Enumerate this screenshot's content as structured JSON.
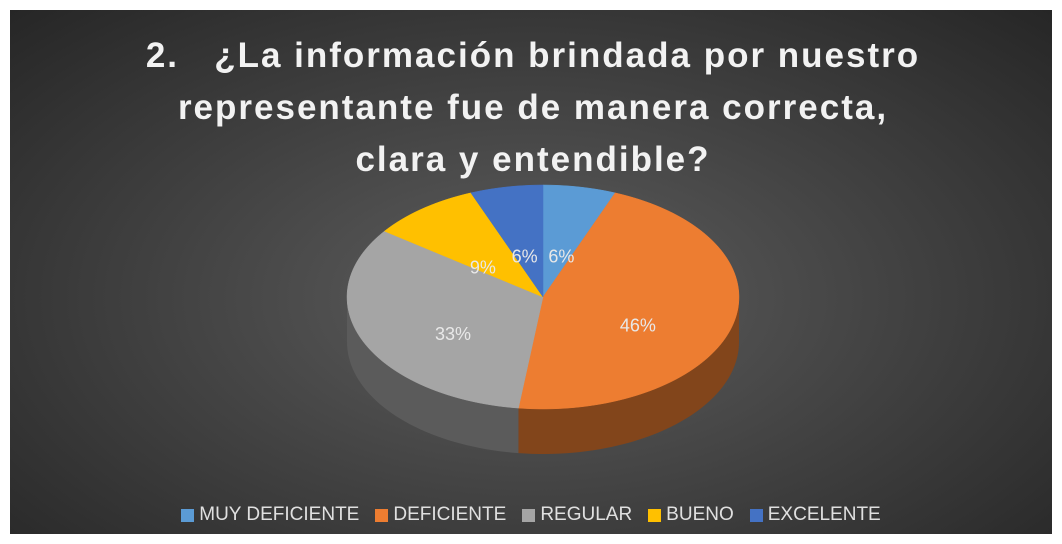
{
  "chart_data": {
    "type": "pie",
    "title": "2.   ¿La información brindada por nuestro representante fue de manera correcta, clara y entendible?",
    "categories": [
      "MUY DEFICIENTE",
      "DEFICIENTE",
      "REGULAR",
      "BUENO",
      "EXCELENTE"
    ],
    "values": [
      6,
      46,
      33,
      9,
      6
    ],
    "value_labels": [
      "6%",
      "46%",
      "33%",
      "9%",
      "6%"
    ],
    "colors": [
      "#5b9bd5",
      "#ed7d31",
      "#a5a5a5",
      "#ffc000",
      "#4472c4"
    ],
    "legend": "bottom"
  }
}
